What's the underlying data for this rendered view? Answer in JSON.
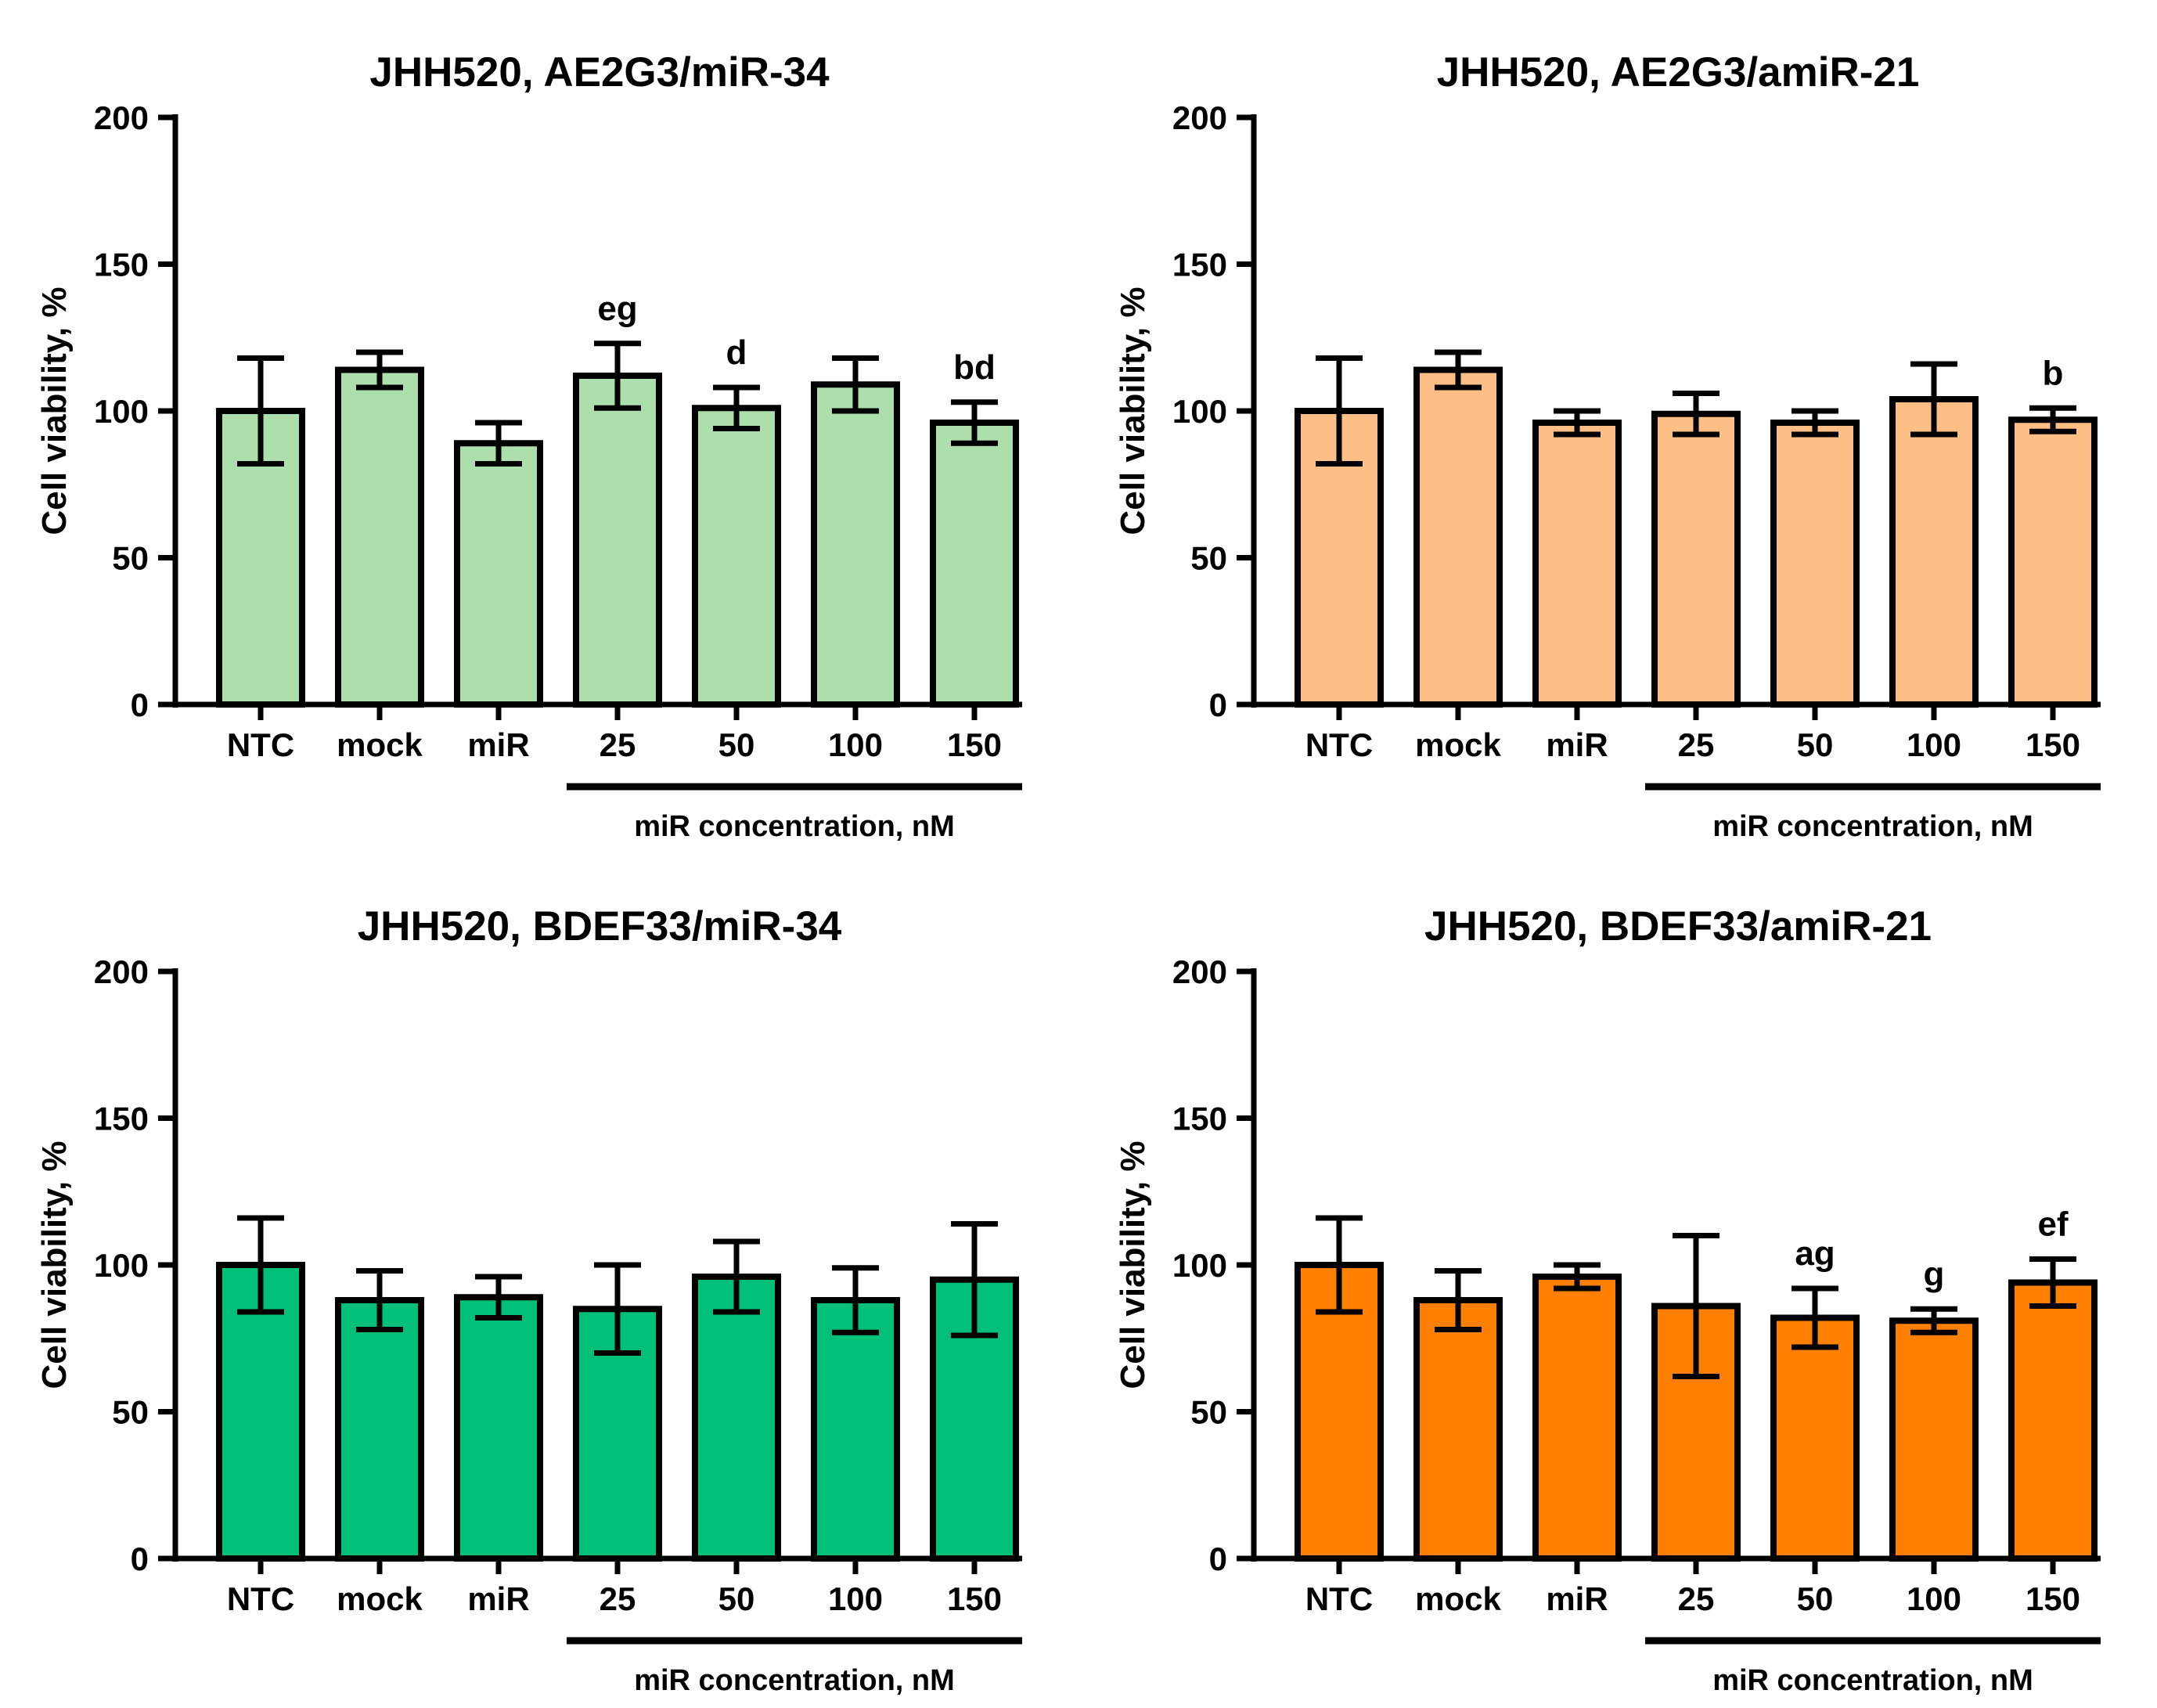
{
  "chart_data": [
    {
      "type": "bar",
      "title": "JHH520, AE2G3/miR-34",
      "xlabel": "",
      "ylabel": "Cell viability, %",
      "ylim": [
        0,
        200
      ],
      "yticks": [
        "0",
        "50",
        "100",
        "150",
        "200"
      ],
      "categories": [
        "NTC",
        "mock",
        "miR",
        "25",
        "50",
        "100",
        "150"
      ],
      "values": [
        100,
        114,
        89,
        112,
        101,
        109,
        96
      ],
      "errors": [
        18,
        6,
        7,
        11,
        7,
        9,
        7
      ],
      "significance": [
        "",
        "",
        "",
        "eg",
        "d",
        "",
        "bd"
      ],
      "concentration_label": "miR concentration, nM",
      "color": "#addfad"
    },
    {
      "type": "bar",
      "title": "JHH520, AE2G3/amiR-21",
      "xlabel": "",
      "ylabel": "Cell viability, %",
      "ylim": [
        0,
        200
      ],
      "yticks": [
        "0",
        "50",
        "100",
        "150",
        "200"
      ],
      "categories": [
        "NTC",
        "mock",
        "miR",
        "25",
        "50",
        "100",
        "150"
      ],
      "values": [
        100,
        114,
        96,
        99,
        96,
        104,
        97
      ],
      "errors": [
        18,
        6,
        4,
        7,
        4,
        12,
        4
      ],
      "significance": [
        "",
        "",
        "",
        "",
        "",
        "",
        "b"
      ],
      "concentration_label": "miR concentration, nM",
      "color": "#fdbf86"
    },
    {
      "type": "bar",
      "title": "JHH520, BDEF33/miR-34",
      "xlabel": "",
      "ylabel": "Cell viability, %",
      "ylim": [
        0,
        200
      ],
      "yticks": [
        "0",
        "50",
        "100",
        "150",
        "200"
      ],
      "categories": [
        "NTC",
        "mock",
        "miR",
        "25",
        "50",
        "100",
        "150"
      ],
      "values": [
        100,
        88,
        89,
        85,
        96,
        88,
        95
      ],
      "errors": [
        16,
        10,
        7,
        15,
        12,
        11,
        19
      ],
      "significance": [
        "",
        "",
        "",
        "",
        "",
        "",
        ""
      ],
      "concentration_label": "miR concentration, nM",
      "color": "#00bf78"
    },
    {
      "type": "bar",
      "title": "JHH520, BDEF33/amiR-21",
      "xlabel": "",
      "ylabel": "Cell viability, %",
      "ylim": [
        0,
        200
      ],
      "yticks": [
        "0",
        "50",
        "100",
        "150",
        "200"
      ],
      "categories": [
        "NTC",
        "mock",
        "miR",
        "25",
        "50",
        "100",
        "150"
      ],
      "values": [
        100,
        88,
        96,
        86,
        82,
        81,
        94
      ],
      "errors": [
        16,
        10,
        4,
        24,
        10,
        4,
        8
      ],
      "significance": [
        "",
        "",
        "",
        "",
        "ag",
        "g",
        "ef"
      ],
      "concentration_label": "miR concentration, nM",
      "color": "#ff7f00"
    }
  ]
}
